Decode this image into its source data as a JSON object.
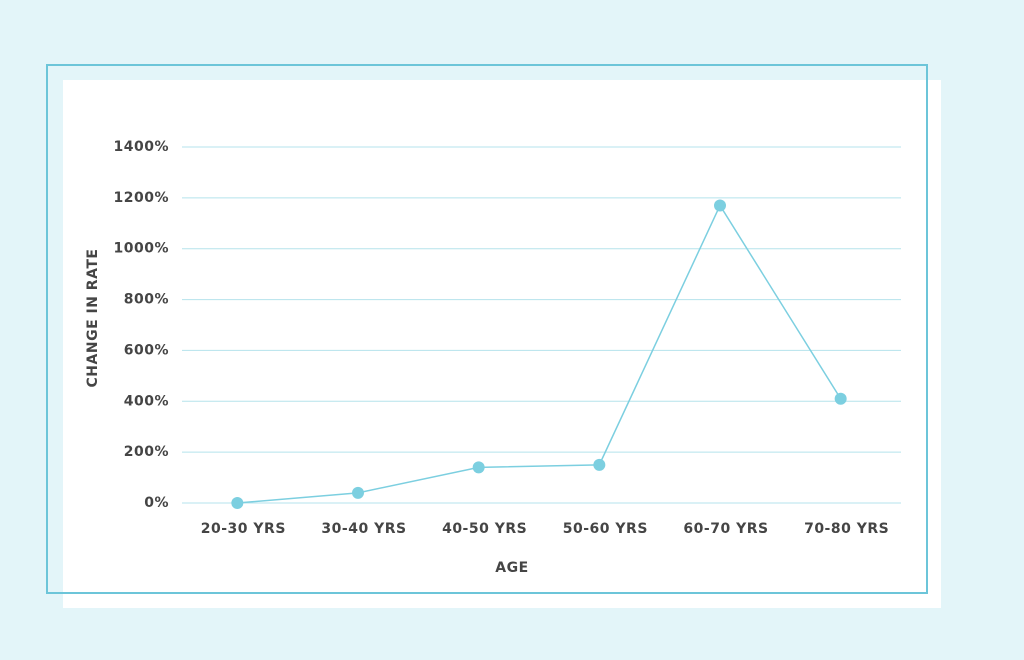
{
  "chart_data": {
    "type": "line",
    "x_label": "AGE",
    "y_label": "CHANGE IN RATE",
    "categories": [
      "20-30 YRS",
      "30-40 YRS",
      "40-50 YRS",
      "50-60 YRS",
      "60-70 YRS",
      "70-80 YRS"
    ],
    "values": [
      0,
      40,
      140,
      150,
      1170,
      410
    ],
    "color": "#7ccfe0",
    "ylim": [
      0,
      1400
    ],
    "yticks": [
      {
        "value": 0,
        "label": "0%"
      },
      {
        "value": 200,
        "label": "200%"
      },
      {
        "value": 400,
        "label": "400%"
      },
      {
        "value": 600,
        "label": "600%"
      },
      {
        "value": 800,
        "label": "800%"
      },
      {
        "value": 1000,
        "label": "1000%"
      },
      {
        "value": 1200,
        "label": "1200%"
      },
      {
        "value": 1400,
        "label": "1400%"
      }
    ],
    "grid": true
  }
}
